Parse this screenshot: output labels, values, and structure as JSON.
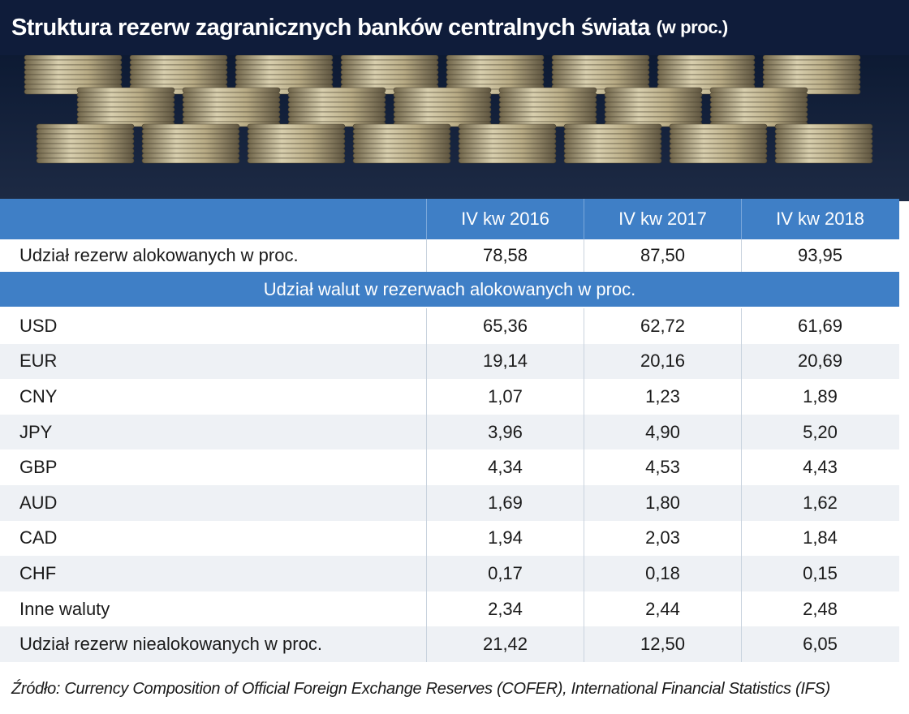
{
  "header": {
    "title": "Struktura rezerw zagranicznych banków centralnych świata",
    "unit": "(w proc.)"
  },
  "table": {
    "columns": [
      "IV kw 2016",
      "IV kw 2017",
      "IV kw 2018"
    ],
    "allocated": {
      "label": "Udział rezerw alokowanych w proc.",
      "values": [
        "78,58",
        "87,50",
        "93,95"
      ]
    },
    "section": "Udział walut w rezerwach alokowanych w proc.",
    "rows": [
      {
        "label": "USD",
        "values": [
          "65,36",
          "62,72",
          "61,69"
        ]
      },
      {
        "label": "EUR",
        "values": [
          "19,14",
          "20,16",
          "20,69"
        ]
      },
      {
        "label": "CNY",
        "values": [
          "1,07",
          "1,23",
          "1,89"
        ]
      },
      {
        "label": "JPY",
        "values": [
          "3,96",
          "4,90",
          "5,20"
        ]
      },
      {
        "label": "GBP",
        "values": [
          "4,34",
          "4,53",
          "4,43"
        ]
      },
      {
        "label": "AUD",
        "values": [
          "1,69",
          "1,80",
          "1,62"
        ]
      },
      {
        "label": "CAD",
        "values": [
          "1,94",
          "2,03",
          "1,84"
        ]
      },
      {
        "label": "CHF",
        "values": [
          "0,17",
          "0,18",
          "0,15"
        ]
      },
      {
        "label": "Inne waluty",
        "values": [
          "2,34",
          "2,44",
          "2,48"
        ]
      }
    ],
    "unallocated": {
      "label": "Udział rezerw niealokowanych w proc.",
      "values": [
        "21,42",
        "12,50",
        "6,05"
      ]
    }
  },
  "source": "Źródło: Currency Composition of Official Foreign Exchange Reserves (COFER), International Financial Statistics (IFS)"
}
